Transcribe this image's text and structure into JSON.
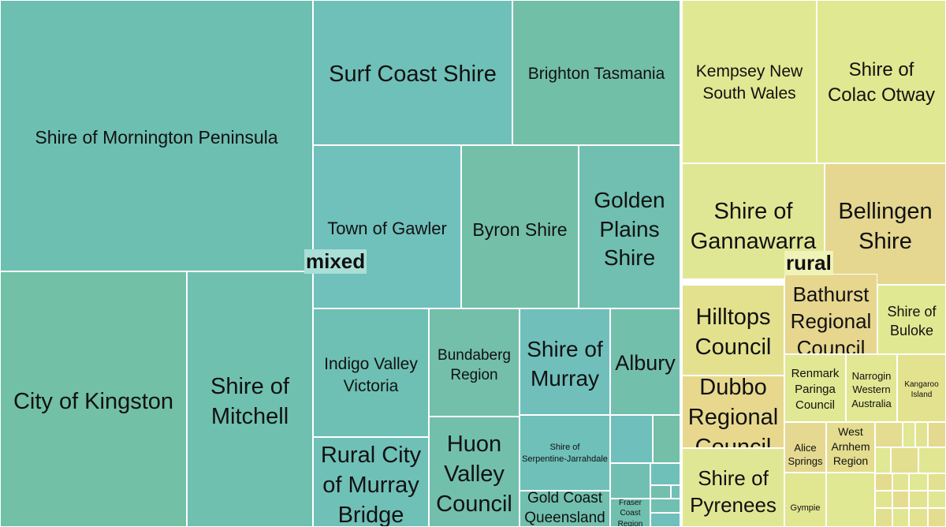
{
  "chart_data": {
    "type": "treemap",
    "groups": [
      {
        "name": "mixed",
        "tiles": [
          {
            "label": "Shire of Mornington Peninsula",
            "color": "#6dbfb2"
          },
          {
            "label": "City of Kingston",
            "color": "#72c0a6"
          },
          {
            "label": "Shire of\nMitchell",
            "color": "#70c0b0"
          },
          {
            "label": "Surf Coast Shire",
            "color": "#6fc0b8"
          },
          {
            "label": "Brighton Tasmania",
            "color": "#72bfa7"
          },
          {
            "label": "Town of Gawler",
            "color": "#70c0bc"
          },
          {
            "label": "Byron Shire",
            "color": "#73bfa8"
          },
          {
            "label": "Golden\nPlains\nShire",
            "color": "#70bfb1"
          },
          {
            "label": "Indigo Valley\nVictoria",
            "color": "#6fc0b4"
          },
          {
            "label": "Bundaberg\nRegion",
            "color": "#73bfa9"
          },
          {
            "label": "Shire of\nMurray",
            "color": "#70bfbb"
          },
          {
            "label": "Albury",
            "color": "#72bfac"
          },
          {
            "label": "Rural City\nof Murray\nBridge",
            "color": "#6fc0b7"
          },
          {
            "label": "Huon\nValley\nCouncil",
            "color": "#72bfac"
          },
          {
            "label": "Shire of\nSerpentine-Jarrahdale",
            "color": "#6fc0b8"
          },
          {
            "label": "Gold Coast\nQueensland",
            "color": "#71bfae"
          },
          {
            "label": "Fraser\nCoast\nRegion",
            "color": "#71bfaf"
          },
          {
            "label": "",
            "color": "#6fbfbd"
          },
          {
            "label": "",
            "color": "#73bfa8"
          },
          {
            "label": "",
            "color": "#71bfb2"
          },
          {
            "label": "",
            "color": "#6fc0b9"
          },
          {
            "label": "",
            "color": "#72bfad"
          },
          {
            "label": "",
            "color": "#70c0b5"
          },
          {
            "label": "",
            "color": "#71bfb0"
          },
          {
            "label": "",
            "color": "#6fc0ba"
          }
        ]
      },
      {
        "name": "rural",
        "tiles": [
          {
            "label": "Kempsey New\nSouth Wales",
            "color": "#e1e893"
          },
          {
            "label": "Shire of\nColac Otway",
            "color": "#e0e891"
          },
          {
            "label": "Shire of\nGannawarra",
            "color": "#e0e794"
          },
          {
            "label": "Bellingen\nShire",
            "color": "#e5d690"
          },
          {
            "label": "Hilltops\nCouncil",
            "color": "#e3e18e"
          },
          {
            "label": "Bathurst\nRegional\nCouncil",
            "color": "#e6d68e"
          },
          {
            "label": "Shire of\nBuloke",
            "color": "#e1e892"
          },
          {
            "label": "Dubbo\nRegional\nCouncil",
            "color": "#e7d88e"
          },
          {
            "label": "Renmark\nParinga\nCouncil",
            "color": "#e0e893"
          },
          {
            "label": "Narrogin\nWestern\nAustralia",
            "color": "#e1e792"
          },
          {
            "label": "Kangaroo\nIsland",
            "color": "#e3e28f"
          },
          {
            "label": "Shire of\nPyrenees",
            "color": "#e0e794"
          },
          {
            "label": "Alice\nSprings",
            "color": "#e5d890"
          },
          {
            "label": "West\nArnhem\nRegion",
            "color": "#e4dd8f"
          },
          {
            "label": "Gympie",
            "color": "#e1e691"
          },
          {
            "label": "",
            "color": "#e4dc90"
          },
          {
            "label": "",
            "color": "#e1e792"
          },
          {
            "label": "",
            "color": "#e2e390"
          },
          {
            "label": "",
            "color": "#e5d88f"
          },
          {
            "label": "",
            "color": "#e0e894"
          },
          {
            "label": "",
            "color": "#e3df90"
          },
          {
            "label": "",
            "color": "#e1e692"
          },
          {
            "label": "",
            "color": "#e4db8f"
          },
          {
            "label": "",
            "color": "#e2e491"
          },
          {
            "label": "",
            "color": "#e0e893"
          },
          {
            "label": "",
            "color": "#e3e090"
          },
          {
            "label": "",
            "color": "#e1e592"
          },
          {
            "label": "",
            "color": "#e4dc90"
          },
          {
            "label": "",
            "color": "#e2e391"
          },
          {
            "label": "",
            "color": "#e0e794"
          },
          {
            "label": "",
            "color": "#e3df90"
          },
          {
            "label": "",
            "color": "#e1e692"
          },
          {
            "label": "",
            "color": "#e2e291"
          },
          {
            "label": "",
            "color": "#e4dd8f"
          },
          {
            "label": "",
            "color": "#e0e894"
          }
        ]
      }
    ]
  }
}
